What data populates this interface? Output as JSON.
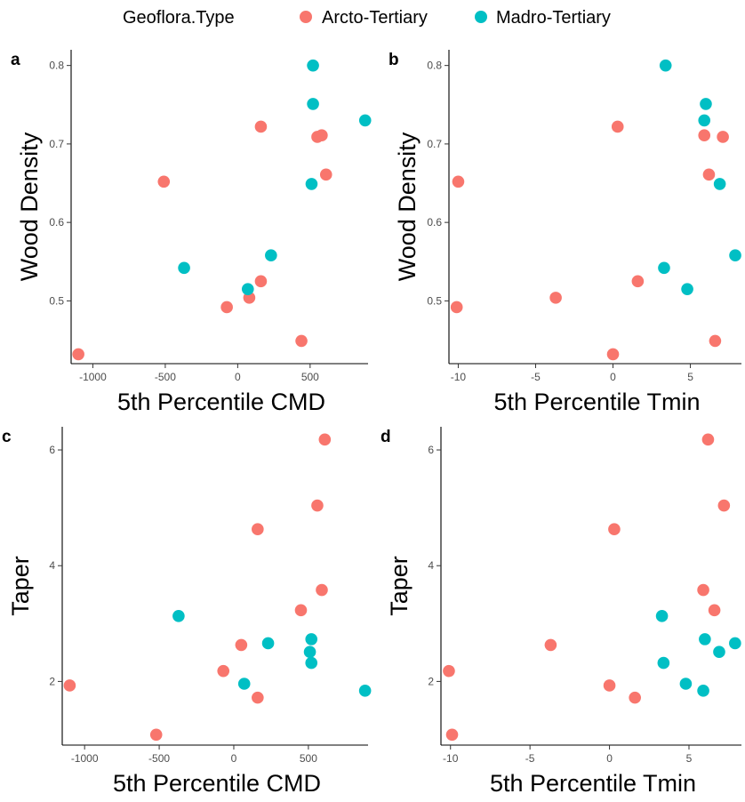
{
  "legend": {
    "title": "Geoflora.Type",
    "items": [
      {
        "label": "Arcto-Tertiary",
        "color": "#F8766D"
      },
      {
        "label": "Madro-Tertiary",
        "color": "#00BFC4"
      }
    ]
  },
  "chart_data": [
    {
      "panel": "a",
      "type": "scatter",
      "xlabel": "5th Percentile CMD",
      "ylabel": "Wood Density",
      "xlim": [
        -1150,
        900
      ],
      "ylim": [
        0.42,
        0.82
      ],
      "xticks": [
        -1000,
        -500,
        0,
        500
      ],
      "yticks": [
        0.5,
        0.6,
        0.7,
        0.8
      ],
      "series": [
        {
          "name": "Arcto-Tertiary",
          "color": "#F8766D",
          "points": [
            [
              -1100,
              0.432
            ],
            [
              -510,
              0.652
            ],
            [
              -75,
              0.492
            ],
            [
              80,
              0.504
            ],
            [
              160,
              0.722
            ],
            [
              160,
              0.525
            ],
            [
              550,
              0.709
            ],
            [
              580,
              0.711
            ],
            [
              610,
              0.661
            ],
            [
              440,
              0.449
            ]
          ]
        },
        {
          "name": "Madro-Tertiary",
          "color": "#00BFC4",
          "points": [
            [
              520,
              0.8
            ],
            [
              520,
              0.751
            ],
            [
              880,
              0.73
            ],
            [
              510,
              0.649
            ],
            [
              230,
              0.558
            ],
            [
              -370,
              0.542
            ],
            [
              70,
              0.515
            ]
          ]
        }
      ]
    },
    {
      "panel": "b",
      "type": "scatter",
      "xlabel": "5th Percentile Tmin",
      "ylabel": "Wood Density",
      "xlim": [
        -10.6,
        8.3
      ],
      "ylim": [
        0.42,
        0.82
      ],
      "xticks": [
        -10,
        -5,
        0,
        5
      ],
      "yticks": [
        0.5,
        0.6,
        0.7,
        0.8
      ],
      "series": [
        {
          "name": "Arcto-Tertiary",
          "color": "#F8766D",
          "points": [
            [
              -10,
              0.652
            ],
            [
              -10.1,
              0.492
            ],
            [
              -3.7,
              0.504
            ],
            [
              0,
              0.432
            ],
            [
              0.3,
              0.722
            ],
            [
              1.6,
              0.525
            ],
            [
              5.9,
              0.711
            ],
            [
              7.1,
              0.709
            ],
            [
              6.2,
              0.661
            ],
            [
              6.6,
              0.449
            ]
          ]
        },
        {
          "name": "Madro-Tertiary",
          "color": "#00BFC4",
          "points": [
            [
              3.4,
              0.8
            ],
            [
              6,
              0.751
            ],
            [
              5.9,
              0.73
            ],
            [
              6.9,
              0.649
            ],
            [
              7.9,
              0.558
            ],
            [
              3.3,
              0.542
            ],
            [
              4.8,
              0.515
            ]
          ]
        }
      ]
    },
    {
      "panel": "c",
      "type": "scatter",
      "xlabel": "5th Percentile CMD",
      "ylabel": "Taper",
      "xlim": [
        -1150,
        900
      ],
      "ylim": [
        0.9,
        6.4
      ],
      "xticks": [
        -1000,
        -500,
        0,
        500
      ],
      "yticks": [
        2,
        4,
        6
      ],
      "series": [
        {
          "name": "Arcto-Tertiary",
          "color": "#F8766D",
          "points": [
            [
              -1100,
              1.93
            ],
            [
              -520,
              1.08
            ],
            [
              -70,
              2.18
            ],
            [
              50,
              2.63
            ],
            [
              160,
              4.63
            ],
            [
              160,
              1.72
            ],
            [
              450,
              3.23
            ],
            [
              560,
              5.04
            ],
            [
              590,
              3.58
            ],
            [
              610,
              6.18
            ]
          ]
        },
        {
          "name": "Madro-Tertiary",
          "color": "#00BFC4",
          "points": [
            [
              -370,
              3.13
            ],
            [
              230,
              2.66
            ],
            [
              70,
              1.96
            ],
            [
              520,
              2.73
            ],
            [
              510,
              2.51
            ],
            [
              520,
              2.32
            ],
            [
              880,
              1.84
            ]
          ]
        }
      ]
    },
    {
      "panel": "d",
      "type": "scatter",
      "xlabel": "5th Percentile Tmin",
      "ylabel": "Taper",
      "xlim": [
        -10.6,
        8.3
      ],
      "ylim": [
        0.9,
        6.4
      ],
      "xticks": [
        -10,
        -5,
        0,
        5
      ],
      "yticks": [
        2,
        4,
        6
      ],
      "series": [
        {
          "name": "Arcto-Tertiary",
          "color": "#F8766D",
          "points": [
            [
              -10.1,
              2.18
            ],
            [
              -9.9,
              1.08
            ],
            [
              -3.7,
              2.63
            ],
            [
              0,
              1.93
            ],
            [
              0.3,
              4.63
            ],
            [
              1.6,
              1.72
            ],
            [
              5.9,
              3.58
            ],
            [
              6.6,
              3.23
            ],
            [
              6.2,
              6.18
            ],
            [
              7.2,
              5.04
            ]
          ]
        },
        {
          "name": "Madro-Tertiary",
          "color": "#00BFC4",
          "points": [
            [
              3.3,
              3.13
            ],
            [
              3.4,
              2.32
            ],
            [
              4.8,
              1.96
            ],
            [
              5.9,
              1.84
            ],
            [
              6,
              2.73
            ],
            [
              6.9,
              2.51
            ],
            [
              7.9,
              2.66
            ]
          ]
        }
      ]
    }
  ]
}
